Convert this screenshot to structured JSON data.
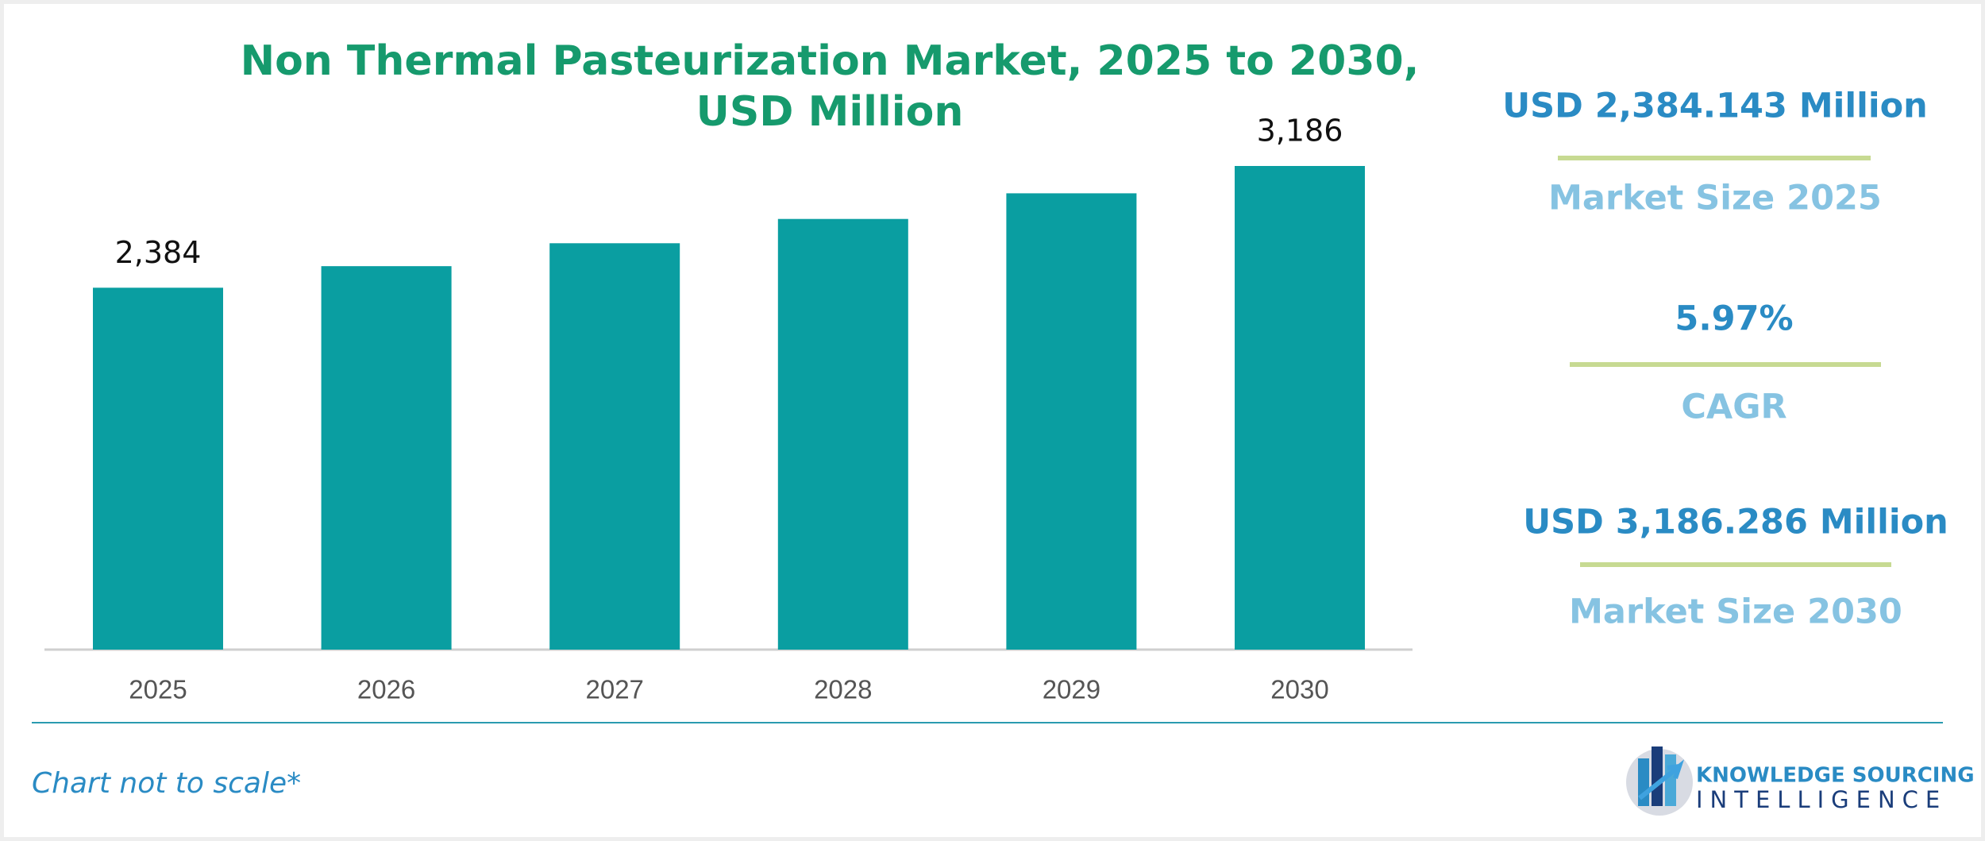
{
  "chart_data": {
    "type": "bar",
    "title": "Non Thermal Pasteurization Market, 2025 to 2030, USD Million",
    "categories": [
      "2025",
      "2026",
      "2027",
      "2028",
      "2029",
      "2030"
    ],
    "values": [
      2384,
      2526,
      2677,
      2837,
      3006,
      3186
    ],
    "value_labels": [
      "2,384",
      null,
      null,
      null,
      null,
      "3,186"
    ],
    "color": "#0a9ea1"
  },
  "panel": [
    {
      "value": "USD 2,384.143 Million",
      "label": "Market Size 2025"
    },
    {
      "value": "5.97%",
      "label": "CAGR"
    },
    {
      "value": "USD 3,186.286 Million",
      "label": "Market Size 2030"
    }
  ],
  "footnote": "Chart not to scale*",
  "logo": {
    "line1": "KNOWLEDGE SOURCING",
    "line2": "INTELLIGENCE"
  }
}
